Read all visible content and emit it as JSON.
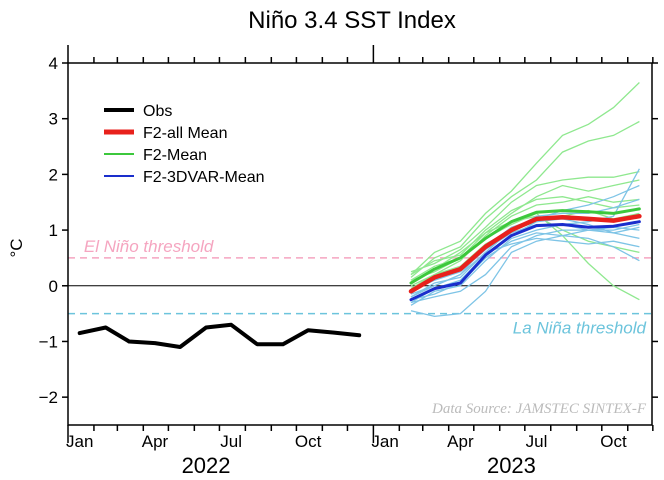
{
  "chart_data": {
    "type": "line",
    "title": "Niño 3.4 SST Index",
    "ylabel": "°C",
    "ylim": [
      -2.5,
      4.0
    ],
    "yticks": [
      -2,
      -1,
      0,
      1,
      2,
      3,
      4
    ],
    "ytick_labels": [
      "−2",
      "−1",
      "0",
      "1",
      "2",
      "3",
      "4"
    ],
    "xlim": [
      "2022-01-01",
      "2023-11-30"
    ],
    "xticks": [
      {
        "date": "2022-01-15",
        "label": "Jan"
      },
      {
        "date": "2022-04-15",
        "label": "Apr"
      },
      {
        "date": "2022-07-15",
        "label": "Jul"
      },
      {
        "date": "2022-10-15",
        "label": "Oct"
      },
      {
        "date": "2023-01-15",
        "label": "Jan"
      },
      {
        "date": "2023-04-15",
        "label": "Apr"
      },
      {
        "date": "2023-07-15",
        "label": "Jul"
      },
      {
        "date": "2023-10-15",
        "label": "Oct"
      }
    ],
    "year_labels": [
      {
        "date": "2022-06-15",
        "label": "2022"
      },
      {
        "date": "2023-06-15",
        "label": "2023"
      }
    ],
    "legend_position": "top-left",
    "legend": [
      {
        "name": "Obs",
        "color": "#000000"
      },
      {
        "name": "F2-all Mean",
        "color": "#e8211c"
      },
      {
        "name": "F2-Mean",
        "color": "#3cc83c"
      },
      {
        "name": "F2-3DVAR-Mean",
        "color": "#1a2ecc"
      }
    ],
    "thresholds": [
      {
        "label": "El Niño threshold",
        "value": 0.5,
        "color": "#f5a5c0"
      },
      {
        "label": "La Niña threshold",
        "value": -0.5,
        "color": "#6cc4dc"
      }
    ],
    "zero_line": 0,
    "source": "Data Source: JAMSTEC SINTEX-F",
    "series": [
      {
        "name": "Obs",
        "color": "#000000",
        "x": [
          "2022-01-15",
          "2022-02-15",
          "2022-03-15",
          "2022-04-15",
          "2022-05-15",
          "2022-06-15",
          "2022-07-15",
          "2022-08-15",
          "2022-09-15",
          "2022-10-15",
          "2022-11-15",
          "2022-12-15"
        ],
        "y": [
          -0.85,
          -0.75,
          -1.0,
          -1.03,
          -1.1,
          -0.75,
          -0.7,
          -1.05,
          -1.05,
          -0.8,
          -0.84,
          -0.89
        ]
      },
      {
        "name": "F2-all Mean",
        "color": "#e8211c",
        "x": [
          "2023-02-15",
          "2023-03-15",
          "2023-04-15",
          "2023-05-15",
          "2023-06-15",
          "2023-07-15",
          "2023-08-15",
          "2023-09-15",
          "2023-10-15",
          "2023-11-15"
        ],
        "y": [
          -0.1,
          0.15,
          0.3,
          0.7,
          1.0,
          1.2,
          1.23,
          1.2,
          1.17,
          1.25
        ]
      },
      {
        "name": "F2-Mean",
        "color": "#3cc83c",
        "x": [
          "2023-02-15",
          "2023-03-15",
          "2023-04-15",
          "2023-05-15",
          "2023-06-15",
          "2023-07-15",
          "2023-08-15",
          "2023-09-15",
          "2023-10-15",
          "2023-11-15"
        ],
        "y": [
          0.05,
          0.3,
          0.5,
          0.85,
          1.15,
          1.32,
          1.35,
          1.33,
          1.3,
          1.38
        ]
      },
      {
        "name": "F2-3DVAR-Mean",
        "color": "#1a2ecc",
        "x": [
          "2023-02-15",
          "2023-03-15",
          "2023-04-15",
          "2023-05-15",
          "2023-06-15",
          "2023-07-15",
          "2023-08-15",
          "2023-09-15",
          "2023-10-15",
          "2023-11-15"
        ],
        "y": [
          -0.25,
          -0.05,
          0.05,
          0.55,
          0.9,
          1.08,
          1.1,
          1.05,
          1.07,
          1.15
        ]
      }
    ],
    "members": [
      {
        "group": "F2-Mean",
        "color": "#8fe88f",
        "y": [
          0.2,
          0.6,
          0.8,
          1.3,
          1.7,
          2.2,
          2.7,
          2.9,
          3.2,
          3.65
        ]
      },
      {
        "group": "F2-Mean",
        "color": "#8fe88f",
        "y": [
          0.15,
          0.5,
          0.7,
          1.2,
          1.6,
          1.9,
          2.4,
          2.6,
          2.7,
          2.95
        ]
      },
      {
        "group": "F2-Mean",
        "color": "#8fe88f",
        "y": [
          0.25,
          0.4,
          0.65,
          1.05,
          1.5,
          1.8,
          1.9,
          1.95,
          1.95,
          2.05
        ]
      },
      {
        "group": "F2-Mean",
        "color": "#8fe88f",
        "y": [
          0.1,
          0.35,
          0.5,
          0.95,
          1.3,
          1.6,
          1.8,
          1.7,
          1.8,
          1.9
        ]
      },
      {
        "group": "F2-Mean",
        "color": "#8fe88f",
        "y": [
          0.0,
          0.2,
          0.45,
          0.9,
          1.25,
          1.45,
          1.5,
          1.6,
          1.5,
          1.55
        ]
      },
      {
        "group": "F2-Mean",
        "color": "#8fe88f",
        "y": [
          -0.05,
          0.2,
          0.35,
          0.75,
          1.0,
          1.15,
          1.25,
          1.35,
          1.2,
          1.3
        ]
      },
      {
        "group": "F2-Mean",
        "color": "#8fe88f",
        "y": [
          0.05,
          0.3,
          0.6,
          0.95,
          1.15,
          1.25,
          1.0,
          0.8,
          0.7,
          0.6
        ]
      },
      {
        "group": "F2-Mean",
        "color": "#8fe88f",
        "y": [
          0.1,
          0.25,
          0.5,
          0.85,
          1.1,
          1.3,
          0.9,
          0.4,
          0.0,
          -0.25
        ]
      },
      {
        "group": "F2-Mean",
        "color": "#8fe88f",
        "y": [
          0.2,
          0.45,
          0.55,
          1.0,
          1.35,
          1.55,
          1.6,
          1.5,
          1.4,
          1.45
        ]
      },
      {
        "group": "F2-3DVAR-Mean",
        "color": "#7ec4e6",
        "y": [
          -0.3,
          -0.2,
          -0.1,
          0.2,
          0.7,
          0.9,
          1.0,
          1.0,
          0.95,
          0.85
        ]
      },
      {
        "group": "F2-3DVAR-Mean",
        "color": "#7ec4e6",
        "y": [
          -0.45,
          -0.55,
          -0.5,
          -0.1,
          0.6,
          0.8,
          0.9,
          1.0,
          1.0,
          1.1
        ]
      },
      {
        "group": "F2-3DVAR-Mean",
        "color": "#7ec4e6",
        "y": [
          -0.2,
          0.05,
          0.15,
          0.6,
          1.0,
          1.25,
          1.3,
          1.3,
          1.4,
          1.55
        ]
      },
      {
        "group": "F2-3DVAR-Mean",
        "color": "#7ec4e6",
        "y": [
          -0.15,
          0.0,
          0.2,
          0.7,
          1.05,
          1.2,
          1.35,
          1.45,
          1.6,
          1.8
        ]
      },
      {
        "group": "F2-3DVAR-Mean",
        "color": "#7ec4e6",
        "y": [
          -0.35,
          -0.1,
          0.0,
          0.45,
          0.85,
          1.0,
          1.1,
          1.15,
          1.25,
          2.1
        ]
      },
      {
        "group": "F2-3DVAR-Mean",
        "color": "#7ec4e6",
        "y": [
          -0.25,
          -0.15,
          0.05,
          0.5,
          0.8,
          0.95,
          0.9,
          0.85,
          0.7,
          0.45
        ]
      },
      {
        "group": "F2-3DVAR-Mean",
        "color": "#7ec4e6",
        "y": [
          -0.1,
          0.1,
          0.25,
          0.65,
          0.95,
          1.1,
          1.1,
          1.0,
          1.05,
          1.0
        ]
      },
      {
        "group": "F2-3DVAR-Mean",
        "color": "#7ec4e6",
        "y": [
          -0.3,
          -0.05,
          0.1,
          0.55,
          0.9,
          1.15,
          1.2,
          1.1,
          0.95,
          1.05
        ]
      },
      {
        "group": "F2-3DVAR-Mean",
        "color": "#7ec4e6",
        "y": [
          -0.2,
          0.0,
          0.2,
          0.6,
          0.75,
          0.85,
          0.8,
          0.75,
          0.8,
          0.7
        ]
      }
    ],
    "members_x": [
      "2023-02-15",
      "2023-03-15",
      "2023-04-15",
      "2023-05-15",
      "2023-06-15",
      "2023-07-15",
      "2023-08-15",
      "2023-09-15",
      "2023-10-15",
      "2023-11-15"
    ]
  }
}
